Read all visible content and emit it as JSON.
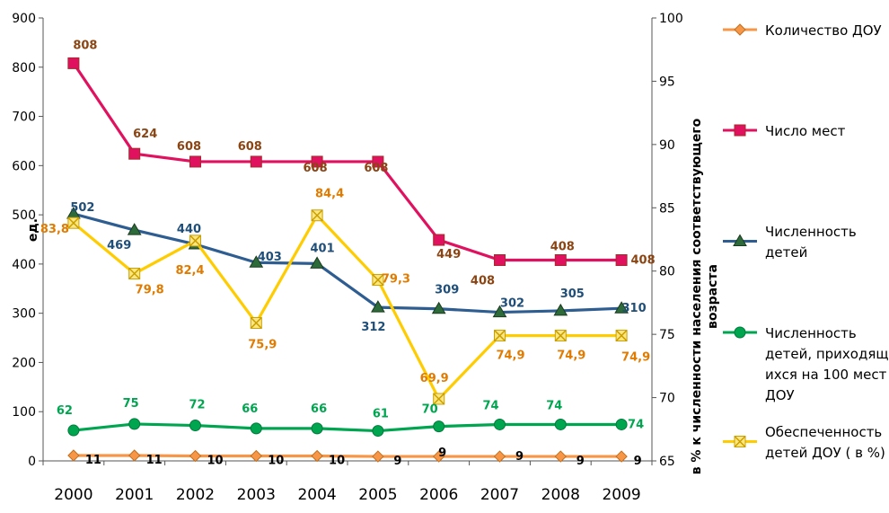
{
  "chart_data": {
    "type": "line",
    "x": [
      "2000",
      "2001",
      "2002",
      "2003",
      "2004",
      "2005",
      "2006",
      "2007",
      "2008",
      "2009"
    ],
    "y_left": {
      "label": "ед.",
      "range": [
        0,
        900
      ],
      "ticks": [
        "0",
        "100",
        "200",
        "300",
        "400",
        "500",
        "600",
        "700",
        "800",
        "900"
      ]
    },
    "y_right": {
      "label_line1": "в % к численности населения соответствующего",
      "label_line2": "возраста",
      "range": [
        65,
        100
      ],
      "ticks": [
        "65",
        "70",
        "75",
        "80",
        "85",
        "90",
        "95",
        "100"
      ]
    },
    "grid": false,
    "legend_position": "right",
    "series": [
      {
        "name": "Количество ДОУ",
        "axis": "left",
        "color": "#F79646",
        "marker": "diamond",
        "values": [
          11,
          11,
          10,
          10,
          10,
          9,
          9,
          9,
          9,
          9
        ],
        "labels": [
          "11",
          "11",
          "10",
          "10",
          "10",
          "9",
          "9",
          "9",
          "9",
          "9"
        ],
        "label_color": "#000000"
      },
      {
        "name": "Число мест",
        "axis": "left",
        "color": "#E0115F",
        "marker": "square",
        "values": [
          808,
          624,
          608,
          608,
          608,
          608,
          449,
          408,
          408,
          408
        ],
        "labels": [
          "808",
          "624",
          "608",
          "608",
          "608",
          "608",
          "449",
          "408",
          "408",
          "408"
        ],
        "label_color": "#8B4513"
      },
      {
        "name_line1": "Численность",
        "name_line2": "детей",
        "axis": "left",
        "color": "#2E5D91",
        "marker": "triangle",
        "values": [
          502,
          469,
          440,
          403,
          401,
          312,
          309,
          302,
          305,
          310
        ],
        "labels": [
          "502",
          "469",
          "440",
          "403",
          "401",
          "312",
          "309",
          "302",
          "305",
          "310"
        ],
        "label_color": "#1F4E79"
      },
      {
        "name_line1": "Численность",
        "name_line2": "детей, приходящ",
        "name_line3": "ихся на 100 мест",
        "name_line4": "ДОУ",
        "axis": "left",
        "color": "#00A550",
        "marker": "circle",
        "values": [
          62,
          75,
          72,
          66,
          66,
          61,
          70,
          74,
          74,
          74
        ],
        "labels": [
          "62",
          "75",
          "72",
          "66",
          "66",
          "61",
          "70",
          "74",
          "74",
          "74"
        ],
        "label_color": "#00A550"
      },
      {
        "name_line1": "Обеспеченность",
        "name_line2": "детей ДОУ ( в %)",
        "axis": "right",
        "color": "#FFCC00",
        "marker": "x-square",
        "values": [
          83.8,
          79.8,
          82.4,
          75.9,
          84.4,
          79.3,
          69.9,
          74.9,
          74.9,
          74.9
        ],
        "labels": [
          "83,8",
          "79,8",
          "82,4",
          "75,9",
          "84,4",
          "79,3",
          "69,9",
          "74,9",
          "74,9",
          "74,9"
        ],
        "label_color": "#E07B00"
      }
    ]
  }
}
